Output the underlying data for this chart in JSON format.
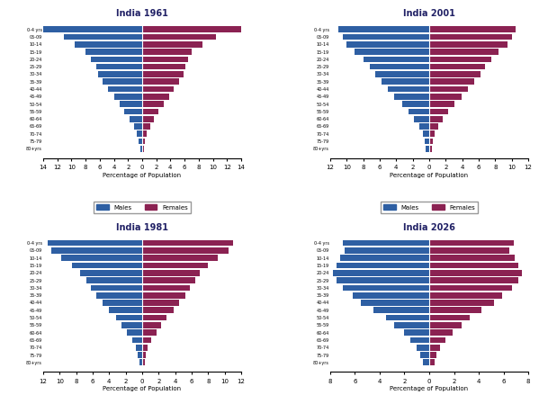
{
  "age_groups": [
    "80+yrs",
    "75-79",
    "70-74",
    "65-69",
    "60-64",
    "55-59",
    "50-54",
    "45-49",
    "40-44",
    "35-39",
    "30-34",
    "25-29",
    "20-24",
    "15-19",
    "10-14",
    "05-09",
    "0-4 yrs"
  ],
  "charts": [
    {
      "title": "India 1961",
      "xlim": 14,
      "xticks": [
        14,
        12,
        10,
        8,
        6,
        4,
        2,
        0,
        2,
        4,
        6,
        8,
        10,
        12,
        14
      ],
      "males": [
        0.3,
        0.5,
        0.8,
        1.2,
        1.8,
        2.5,
        3.2,
        4.0,
        4.8,
        5.6,
        6.2,
        6.5,
        7.2,
        8.0,
        9.5,
        11.0,
        14.5
      ],
      "females": [
        0.3,
        0.4,
        0.7,
        1.1,
        1.7,
        2.3,
        3.0,
        3.8,
        4.5,
        5.2,
        5.8,
        6.1,
        6.5,
        7.0,
        8.5,
        10.5,
        14.0
      ]
    },
    {
      "title": "India 2001",
      "xlim": 12,
      "xticks": [
        12,
        10,
        8,
        6,
        4,
        2,
        0,
        2,
        4,
        6,
        8,
        10,
        12
      ],
      "males": [
        0.4,
        0.5,
        0.8,
        1.2,
        1.8,
        2.5,
        3.3,
        4.2,
        5.0,
        5.8,
        6.5,
        7.2,
        8.0,
        9.0,
        10.0,
        10.5,
        11.0
      ],
      "females": [
        0.3,
        0.4,
        0.7,
        1.1,
        1.6,
        2.3,
        3.0,
        3.9,
        4.7,
        5.5,
        6.2,
        6.8,
        7.5,
        8.4,
        9.5,
        10.0,
        10.5
      ]
    },
    {
      "title": "India 1981",
      "xlim": 12,
      "xticks": [
        12,
        10,
        8,
        6,
        4,
        2,
        0,
        2,
        4,
        6,
        8,
        10,
        12
      ],
      "males": [
        0.3,
        0.5,
        0.8,
        1.2,
        1.8,
        2.5,
        3.2,
        4.0,
        4.8,
        5.6,
        6.2,
        6.8,
        7.5,
        8.5,
        9.8,
        11.0,
        11.5
      ],
      "females": [
        0.3,
        0.4,
        0.7,
        1.1,
        1.7,
        2.3,
        3.0,
        3.8,
        4.5,
        5.2,
        5.8,
        6.4,
        7.0,
        8.0,
        9.2,
        10.5,
        11.0
      ]
    },
    {
      "title": "India 2026",
      "xlim": 8,
      "xticks": [
        8,
        6,
        4,
        2,
        0,
        2,
        4,
        6,
        8
      ],
      "males": [
        0.5,
        0.7,
        1.0,
        1.5,
        2.0,
        2.8,
        3.5,
        4.5,
        5.5,
        6.2,
        7.0,
        7.5,
        7.8,
        7.5,
        7.2,
        6.8,
        7.0
      ],
      "females": [
        0.4,
        0.6,
        0.9,
        1.3,
        1.9,
        2.6,
        3.3,
        4.2,
        5.2,
        5.9,
        6.7,
        7.2,
        7.5,
        7.2,
        6.9,
        6.5,
        6.8
      ]
    }
  ],
  "male_color": "#2E5FA3",
  "female_color": "#8B2252",
  "xlabel": "Percentage of Population",
  "bar_height": 0.8
}
